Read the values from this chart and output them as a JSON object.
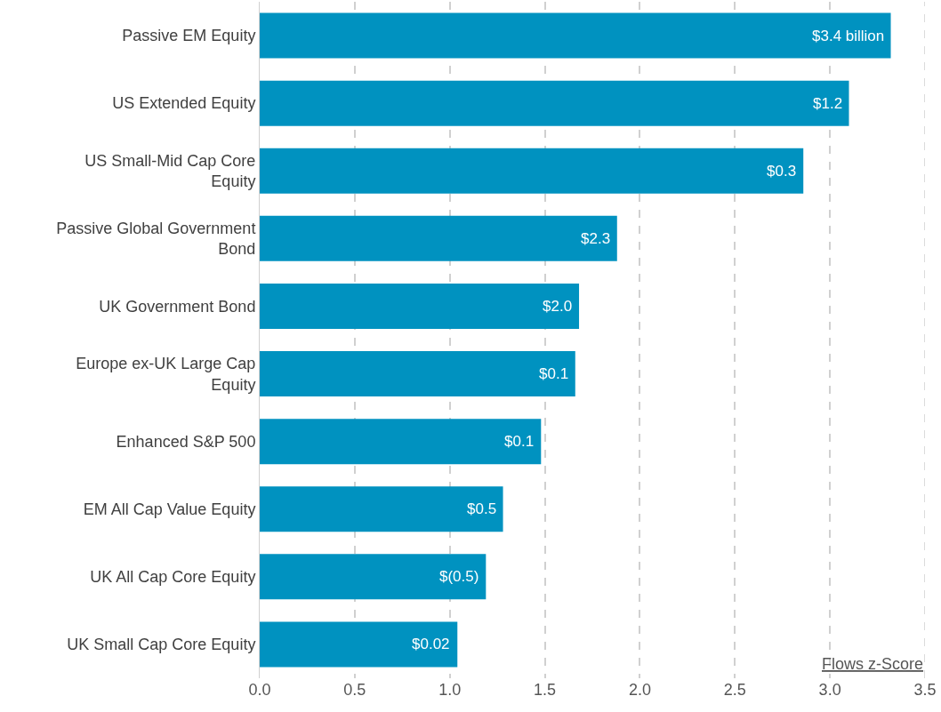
{
  "chart_data": {
    "type": "bar",
    "orientation": "horizontal",
    "xlabel": "Flows z-Score",
    "categories": [
      "Passive EM Equity",
      "US Extended Equity",
      "US Small-Mid Cap Core Equity",
      "Passive Global Government Bond",
      "UK Government Bond",
      "Europe ex-UK Large Cap Equity",
      "Enhanced S&P 500",
      "EM All Cap Value Equity",
      "UK All Cap Core Equity",
      "UK Small Cap Core Equity"
    ],
    "values": [
      3.32,
      3.1,
      2.86,
      1.88,
      1.68,
      1.66,
      1.48,
      1.28,
      1.19,
      1.04
    ],
    "annotations": [
      {
        "text": "$3.4 billion",
        "x": 3.32,
        "y": "Passive EM Equity"
      },
      {
        "text": "$1.2",
        "x": 3.1,
        "y": "US Extended Equity"
      },
      {
        "text": "$0.3",
        "x": 2.86,
        "y": "US Small-Mid Cap Core Equity"
      },
      {
        "text": "$2.3",
        "x": 1.88,
        "y": "Passive Global Government Bond"
      },
      {
        "text": "$2.0",
        "x": 1.68,
        "y": "UK Government Bond"
      },
      {
        "text": "$0.1",
        "x": 1.66,
        "y": "Europe ex-UK Large Cap Equity"
      },
      {
        "text": "$0.1",
        "x": 1.48,
        "y": "Enhanced S&P 500"
      },
      {
        "text": "$0.5",
        "x": 1.28,
        "y": "EM All Cap Value Equity"
      },
      {
        "text": "$(0.5)",
        "x": 1.19,
        "y": "UK All Cap Core Equity"
      },
      {
        "text": "$0.02",
        "x": 1.04,
        "y": "UK Small Cap Core Equity"
      }
    ],
    "color": "#0092c0",
    "xlim": [
      0,
      3.5
    ],
    "xticks": [
      {
        "value": 0,
        "label": "0.0"
      },
      {
        "value": 0.5,
        "label": "0.5"
      },
      {
        "value": 1,
        "label": "1.0"
      },
      {
        "value": 1.5,
        "label": "1.5"
      },
      {
        "value": 2,
        "label": "2.0"
      },
      {
        "value": 2.5,
        "label": "2.5"
      },
      {
        "value": 3,
        "label": "3.0"
      },
      {
        "value": 3.5,
        "label": "3.5"
      }
    ],
    "grid": "x",
    "legend": false
  }
}
